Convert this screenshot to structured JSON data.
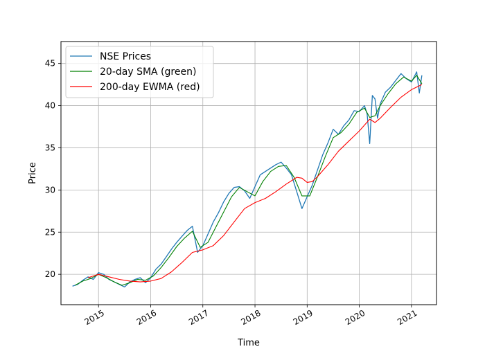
{
  "chart_data": {
    "type": "line",
    "xlabel": "Time",
    "ylabel": "Price",
    "xlim": [
      2014.28,
      2021.48
    ],
    "ylim": [
      16.4,
      47.6
    ],
    "grid": true,
    "legend_position": "upper-left",
    "x_ticks": [
      2015,
      2016,
      2017,
      2018,
      2019,
      2020,
      2021
    ],
    "x_tick_labels": [
      "2015",
      "2016",
      "2017",
      "2018",
      "2019",
      "2020",
      "2021"
    ],
    "y_ticks": [
      20,
      25,
      30,
      35,
      40,
      45
    ],
    "y_tick_labels": [
      "20",
      "25",
      "30",
      "35",
      "40",
      "45"
    ],
    "series": [
      {
        "name": "NSE Prices",
        "color": "#1f77b4",
        "x": [
          2014.5,
          2014.6,
          2014.7,
          2014.8,
          2014.9,
          2015.0,
          2015.1,
          2015.2,
          2015.3,
          2015.4,
          2015.5,
          2015.6,
          2015.7,
          2015.8,
          2015.9,
          2016.0,
          2016.1,
          2016.2,
          2016.3,
          2016.4,
          2016.5,
          2016.6,
          2016.7,
          2016.8,
          2016.9,
          2017.0,
          2017.1,
          2017.2,
          2017.3,
          2017.4,
          2017.5,
          2017.6,
          2017.7,
          2017.8,
          2017.9,
          2018.0,
          2018.1,
          2018.2,
          2018.3,
          2018.4,
          2018.5,
          2018.6,
          2018.7,
          2018.8,
          2018.9,
          2019.0,
          2019.1,
          2019.2,
          2019.3,
          2019.4,
          2019.5,
          2019.6,
          2019.7,
          2019.8,
          2019.9,
          2020.0,
          2020.1,
          2020.15,
          2020.2,
          2020.25,
          2020.3,
          2020.35,
          2020.4,
          2020.5,
          2020.6,
          2020.7,
          2020.8,
          2020.9,
          2021.0,
          2021.1,
          2021.15,
          2021.2
        ],
        "y": [
          18.6,
          18.8,
          19.3,
          19.7,
          19.4,
          20.2,
          20.0,
          19.4,
          19.1,
          18.8,
          18.5,
          19.1,
          19.4,
          19.6,
          19.0,
          19.6,
          20.6,
          21.2,
          22.1,
          23.0,
          23.8,
          24.5,
          25.2,
          25.7,
          22.6,
          23.4,
          24.8,
          26.2,
          27.3,
          28.6,
          29.6,
          30.3,
          30.4,
          29.9,
          29.0,
          30.4,
          31.8,
          32.2,
          32.6,
          33.0,
          33.3,
          32.6,
          31.8,
          29.8,
          27.8,
          29.2,
          30.6,
          32.4,
          34.2,
          35.6,
          37.2,
          36.6,
          37.6,
          38.3,
          39.4,
          39.3,
          40.0,
          39.0,
          35.5,
          41.2,
          40.8,
          38.5,
          40.2,
          41.6,
          42.2,
          43.0,
          43.8,
          43.2,
          42.8,
          44.0,
          41.5,
          43.6
        ]
      },
      {
        "name": "20-day SMA (green)",
        "color": "#008000",
        "x": [
          2014.55,
          2014.7,
          2014.85,
          2015.0,
          2015.15,
          2015.3,
          2015.45,
          2015.6,
          2015.75,
          2015.9,
          2016.05,
          2016.2,
          2016.35,
          2016.5,
          2016.65,
          2016.8,
          2016.95,
          2017.1,
          2017.25,
          2017.4,
          2017.55,
          2017.7,
          2017.85,
          2018.0,
          2018.15,
          2018.3,
          2018.45,
          2018.6,
          2018.75,
          2018.9,
          2019.05,
          2019.2,
          2019.35,
          2019.5,
          2019.65,
          2019.8,
          2019.95,
          2020.1,
          2020.2,
          2020.3,
          2020.4,
          2020.55,
          2020.7,
          2020.85,
          2021.0,
          2021.1,
          2021.2
        ],
        "y": [
          18.7,
          19.2,
          19.5,
          20.0,
          19.6,
          19.1,
          18.7,
          19.0,
          19.4,
          19.3,
          19.8,
          20.8,
          22.0,
          23.3,
          24.3,
          25.1,
          23.2,
          23.8,
          25.6,
          27.4,
          29.2,
          30.3,
          29.8,
          29.3,
          31.0,
          32.2,
          32.8,
          32.9,
          31.5,
          29.3,
          29.3,
          31.6,
          34.0,
          36.2,
          36.8,
          37.8,
          39.2,
          39.7,
          38.6,
          38.8,
          40.0,
          41.4,
          42.6,
          43.4,
          42.9,
          43.6,
          42.6
        ]
      },
      {
        "name": "200-day EWMA (red)",
        "color": "#ff0000",
        "x": [
          2014.8,
          2015.0,
          2015.2,
          2015.4,
          2015.6,
          2015.8,
          2016.0,
          2016.2,
          2016.4,
          2016.6,
          2016.8,
          2017.0,
          2017.2,
          2017.4,
          2017.6,
          2017.8,
          2018.0,
          2018.2,
          2018.4,
          2018.6,
          2018.8,
          2018.9,
          2019.0,
          2019.1,
          2019.2,
          2019.4,
          2019.6,
          2019.8,
          2020.0,
          2020.2,
          2020.3,
          2020.4,
          2020.6,
          2020.8,
          2021.0,
          2021.1,
          2021.2
        ],
        "y": [
          19.6,
          20.0,
          19.7,
          19.4,
          19.2,
          19.1,
          19.2,
          19.5,
          20.3,
          21.4,
          22.6,
          22.9,
          23.4,
          24.6,
          26.2,
          27.8,
          28.5,
          29.0,
          29.8,
          30.7,
          31.5,
          31.4,
          30.9,
          31.0,
          31.6,
          33.0,
          34.6,
          35.8,
          37.0,
          38.4,
          38.0,
          38.5,
          39.8,
          41.0,
          41.9,
          42.2,
          42.5
        ]
      }
    ]
  }
}
